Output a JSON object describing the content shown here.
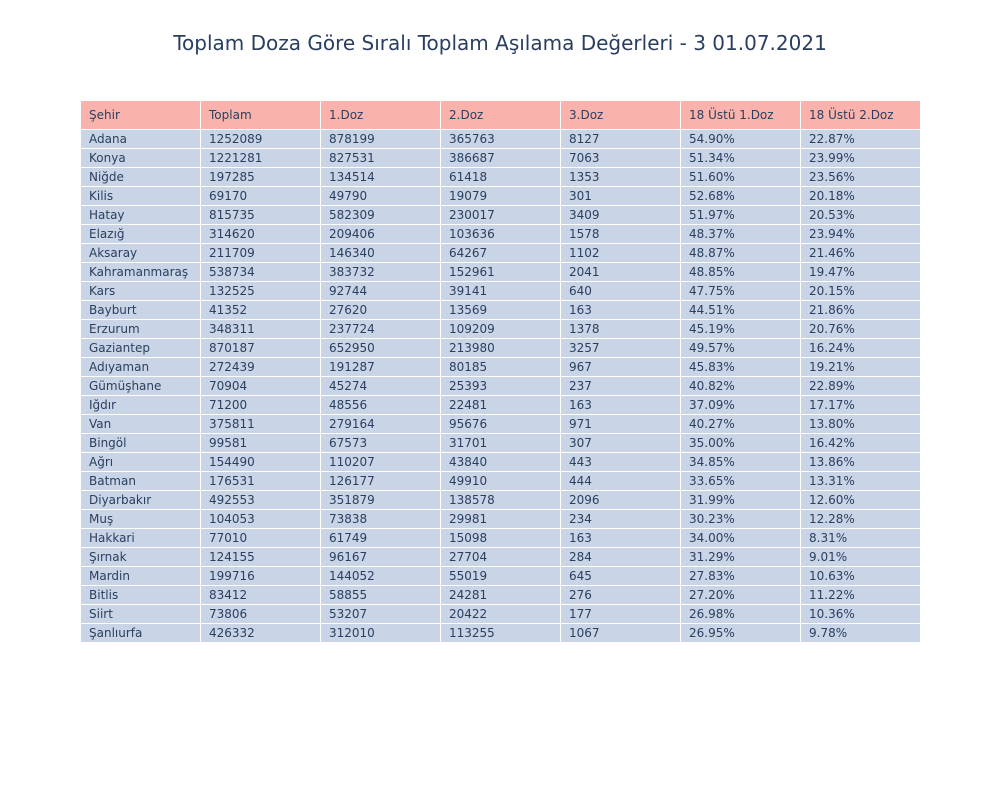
{
  "chart_data": {
    "type": "table",
    "title": "Toplam Doza Göre Sıralı Toplam Aşılama Değerleri - 3 01.07.2021",
    "header_color": "#fab3ac",
    "cell_color": "#c9d4e6",
    "text_color": "#2a3f5f",
    "columns": [
      "Şehir",
      "Toplam",
      "1.Doz",
      "2.Doz",
      "3.Doz",
      "18 Üstü 1.Doz",
      "18 Üstü 2.Doz"
    ],
    "rows": [
      [
        "Adana",
        "1252089",
        "878199",
        "365763",
        "8127",
        "54.90%",
        "22.87%"
      ],
      [
        "Konya",
        "1221281",
        "827531",
        "386687",
        "7063",
        "51.34%",
        "23.99%"
      ],
      [
        "Niğde",
        "197285",
        "134514",
        "61418",
        "1353",
        "51.60%",
        "23.56%"
      ],
      [
        "Kilis",
        "69170",
        "49790",
        "19079",
        "301",
        "52.68%",
        "20.18%"
      ],
      [
        "Hatay",
        "815735",
        "582309",
        "230017",
        "3409",
        "51.97%",
        "20.53%"
      ],
      [
        "Elazığ",
        "314620",
        "209406",
        "103636",
        "1578",
        "48.37%",
        "23.94%"
      ],
      [
        "Aksaray",
        "211709",
        "146340",
        "64267",
        "1102",
        "48.87%",
        "21.46%"
      ],
      [
        "Kahramanmaraş",
        "538734",
        "383732",
        "152961",
        "2041",
        "48.85%",
        "19.47%"
      ],
      [
        "Kars",
        "132525",
        "92744",
        "39141",
        "640",
        "47.75%",
        "20.15%"
      ],
      [
        "Bayburt",
        "41352",
        "27620",
        "13569",
        "163",
        "44.51%",
        "21.86%"
      ],
      [
        "Erzurum",
        "348311",
        "237724",
        "109209",
        "1378",
        "45.19%",
        "20.76%"
      ],
      [
        "Gaziantep",
        "870187",
        "652950",
        "213980",
        "3257",
        "49.57%",
        "16.24%"
      ],
      [
        "Adıyaman",
        "272439",
        "191287",
        "80185",
        "967",
        "45.83%",
        "19.21%"
      ],
      [
        "Gümüşhane",
        "70904",
        "45274",
        "25393",
        "237",
        "40.82%",
        "22.89%"
      ],
      [
        "Iğdır",
        "71200",
        "48556",
        "22481",
        "163",
        "37.09%",
        "17.17%"
      ],
      [
        "Van",
        "375811",
        "279164",
        "95676",
        "971",
        "40.27%",
        "13.80%"
      ],
      [
        "Bingöl",
        "99581",
        "67573",
        "31701",
        "307",
        "35.00%",
        "16.42%"
      ],
      [
        "Ağrı",
        "154490",
        "110207",
        "43840",
        "443",
        "34.85%",
        "13.86%"
      ],
      [
        "Batman",
        "176531",
        "126177",
        "49910",
        "444",
        "33.65%",
        "13.31%"
      ],
      [
        "Diyarbakır",
        "492553",
        "351879",
        "138578",
        "2096",
        "31.99%",
        "12.60%"
      ],
      [
        "Muş",
        "104053",
        "73838",
        "29981",
        "234",
        "30.23%",
        "12.28%"
      ],
      [
        "Hakkari",
        "77010",
        "61749",
        "15098",
        "163",
        "34.00%",
        "8.31%"
      ],
      [
        "Şırnak",
        "124155",
        "96167",
        "27704",
        "284",
        "31.29%",
        "9.01%"
      ],
      [
        "Mardin",
        "199716",
        "144052",
        "55019",
        "645",
        "27.83%",
        "10.63%"
      ],
      [
        "Bitlis",
        "83412",
        "58855",
        "24281",
        "276",
        "27.20%",
        "11.22%"
      ],
      [
        "Siirt",
        "73806",
        "53207",
        "20422",
        "177",
        "26.98%",
        "10.36%"
      ],
      [
        "Şanlıurfa",
        "426332",
        "312010",
        "113255",
        "1067",
        "26.95%",
        "9.78%"
      ]
    ]
  }
}
